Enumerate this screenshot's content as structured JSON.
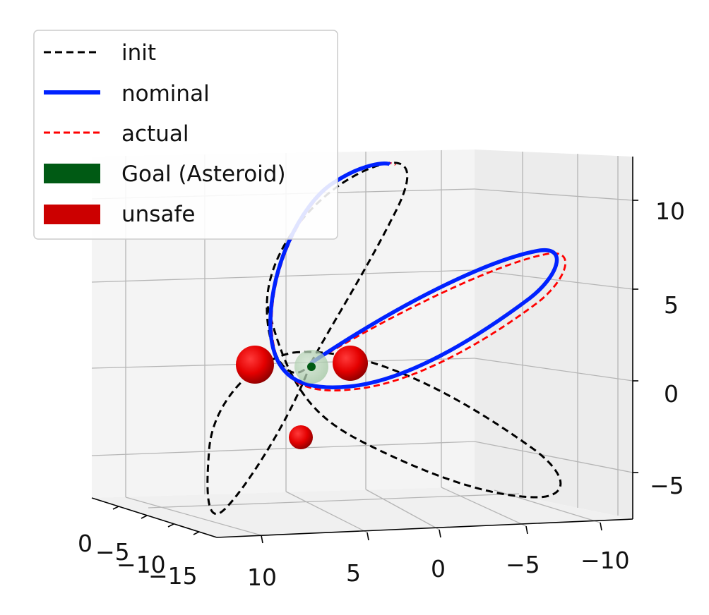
{
  "chart_data": {
    "type": "line",
    "projection": "3d",
    "grid": true,
    "legend_position": "top-left",
    "series": [
      {
        "name": "init",
        "style": "dashed",
        "color": "#000000"
      },
      {
        "name": "nominal",
        "style": "solid",
        "color": "#0022ff"
      },
      {
        "name": "actual",
        "style": "dashed",
        "color": "#ff0000"
      },
      {
        "name": "Goal (Asteroid)",
        "style": "patch",
        "color": "#005a14"
      },
      {
        "name": "unsafe",
        "style": "patch",
        "color": "#cc0000"
      }
    ],
    "axes": {
      "z_ticks": [
        "10",
        "5",
        "0",
        "−5"
      ],
      "x_ticks": [
        "10",
        "5",
        "0",
        "−5",
        "−10"
      ],
      "y_ticks": [
        "0",
        "−5",
        "−10",
        "−15"
      ]
    }
  },
  "colors": {
    "init": "#000000",
    "nominal": "#0022ff",
    "actual": "#ff0000",
    "goal": "#005a14",
    "unsafe": "#cc0000",
    "pane": "#f2f2f2",
    "grid": "#b0b0b0"
  }
}
